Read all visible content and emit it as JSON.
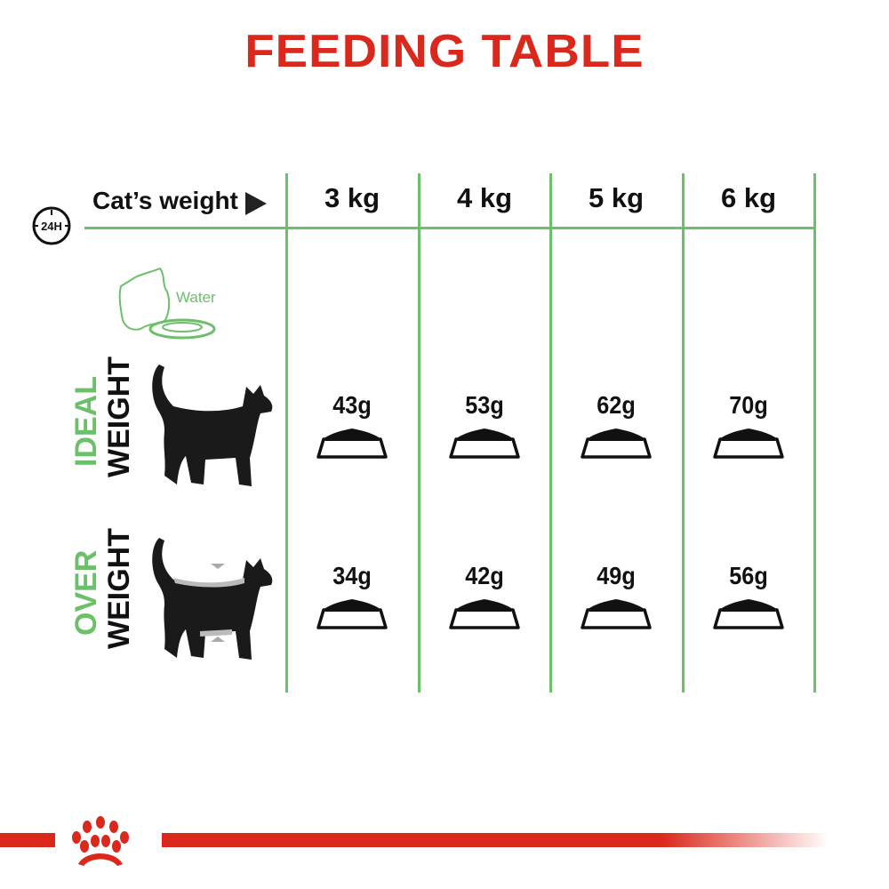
{
  "title": "FEEDING TABLE",
  "header": {
    "clock_label": "24H",
    "cats_weight_label": "Cat’s weight",
    "columns": [
      "3 kg",
      "4 kg",
      "5 kg",
      "6 kg"
    ]
  },
  "water_label": "Water",
  "rows": [
    {
      "label_top": "IDEAL",
      "label_bottom": "WEIGHT",
      "values": [
        "43g",
        "53g",
        "62g",
        "70g"
      ]
    },
    {
      "label_top": "OVER",
      "label_bottom": "WEIGHT",
      "values": [
        "34g",
        "42g",
        "49g",
        "56g"
      ]
    }
  ],
  "colors": {
    "title_red": "#da291c",
    "accent_green": "#6cc06a",
    "text_dark": "#111111"
  },
  "logo": {
    "brand": "Royal Canin crown"
  }
}
